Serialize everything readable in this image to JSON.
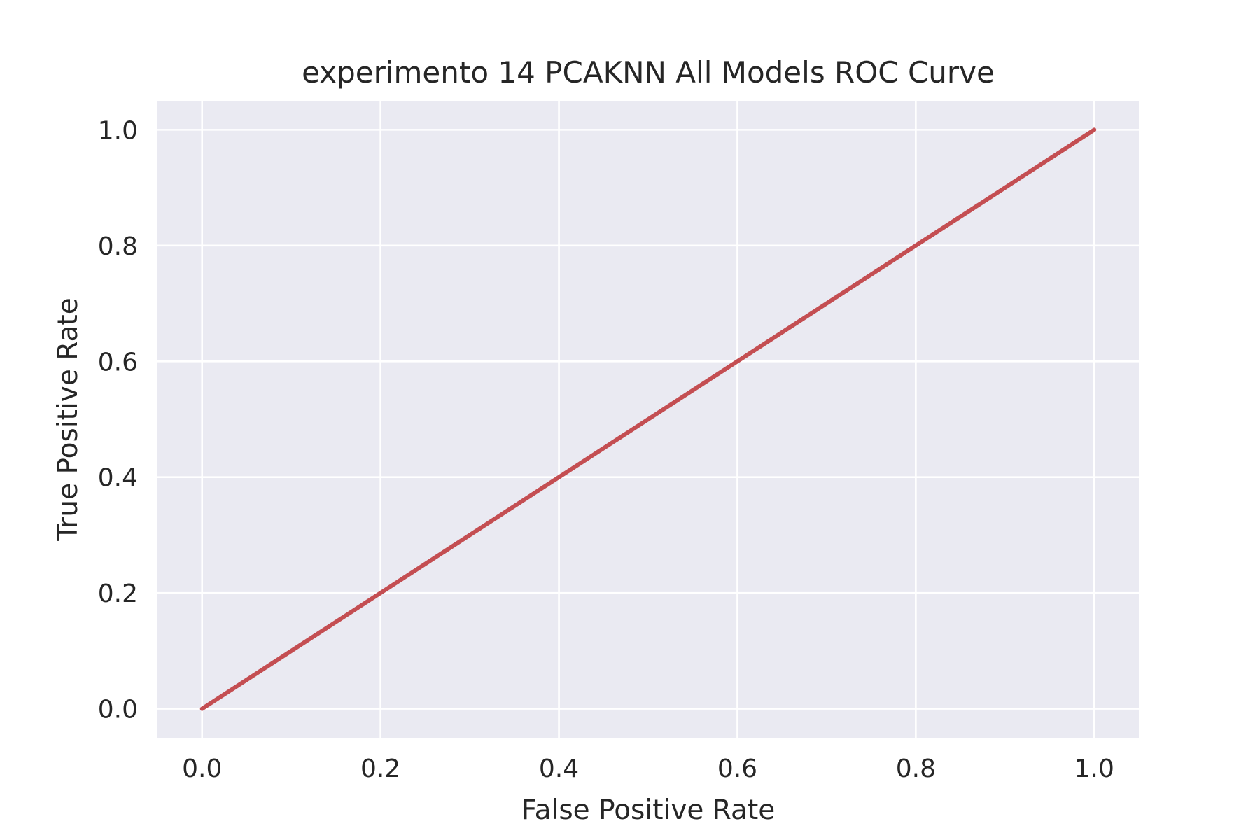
{
  "chart_data": {
    "type": "line",
    "title": "experimento 14 PCAKNN All Models ROC Curve",
    "xlabel": "False Positive Rate",
    "ylabel": "True Positive Rate",
    "xlim": [
      -0.05,
      1.05
    ],
    "ylim": [
      -0.05,
      1.05
    ],
    "xticks": [
      0.0,
      0.2,
      0.4,
      0.6,
      0.8,
      1.0
    ],
    "yticks": [
      0.0,
      0.2,
      0.4,
      0.6,
      0.8,
      1.0
    ],
    "xtick_labels": [
      "0.0",
      "0.2",
      "0.4",
      "0.6",
      "0.8",
      "1.0"
    ],
    "ytick_labels": [
      "0.0",
      "0.2",
      "0.4",
      "0.6",
      "0.8",
      "1.0"
    ],
    "grid": true,
    "background_color": "#eaeaf2",
    "series": [
      {
        "color": "#c44e52",
        "x": [
          0.0,
          1.0
        ],
        "y": [
          0.0,
          1.0
        ]
      }
    ]
  }
}
